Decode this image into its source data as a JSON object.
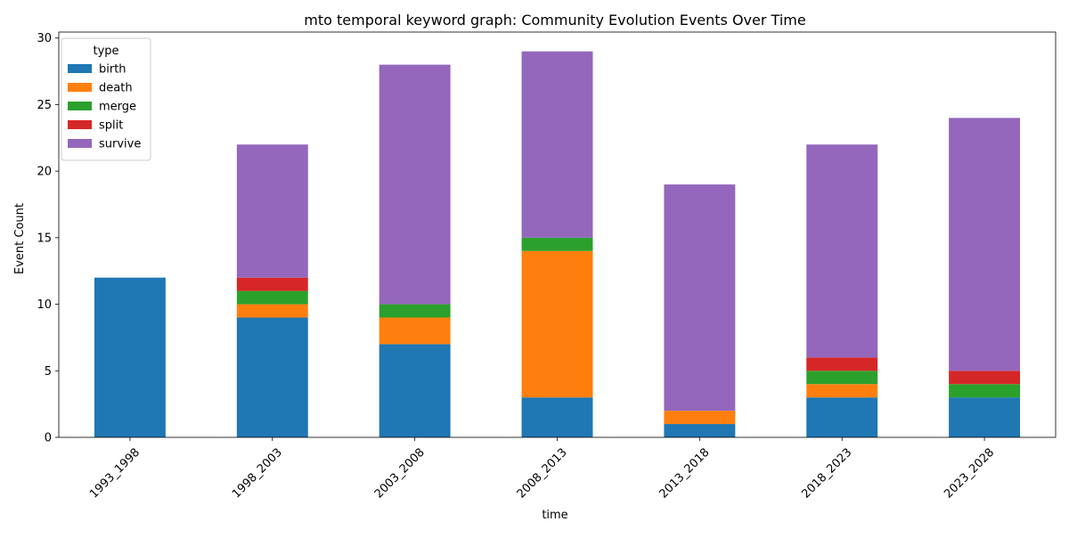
{
  "chart_data": {
    "type": "bar",
    "stacked": true,
    "title": "mto temporal keyword graph: Community Evolution Events Over Time",
    "xlabel": "time",
    "ylabel": "Event Count",
    "ylim": [
      0,
      30.45
    ],
    "yticks": [
      0,
      5,
      10,
      15,
      20,
      25,
      30
    ],
    "grid": false,
    "legend": {
      "title": "type",
      "placement": "top-left"
    },
    "categories": [
      "1993_1998",
      "1998_2003",
      "2003_2008",
      "2008_2013",
      "2013_2018",
      "2018_2023",
      "2023_2028"
    ],
    "series": [
      {
        "name": "birth",
        "color": "#1f77b4",
        "values": [
          12,
          9,
          7,
          3,
          1,
          3,
          3
        ]
      },
      {
        "name": "death",
        "color": "#ff7f0e",
        "values": [
          0,
          1,
          2,
          11,
          1,
          1,
          0
        ]
      },
      {
        "name": "merge",
        "color": "#2ca02c",
        "values": [
          0,
          1,
          1,
          1,
          0,
          1,
          1
        ]
      },
      {
        "name": "split",
        "color": "#d62728",
        "values": [
          0,
          1,
          0,
          0,
          0,
          1,
          1
        ]
      },
      {
        "name": "survive",
        "color": "#9467bd",
        "values": [
          0,
          10,
          18,
          14,
          17,
          16,
          19
        ]
      }
    ]
  }
}
